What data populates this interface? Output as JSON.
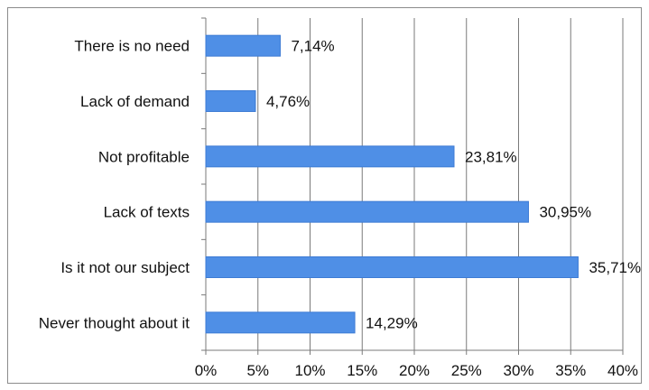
{
  "chart_data": {
    "type": "bar",
    "orientation": "horizontal",
    "categories": [
      "There is no need",
      "Lack of  demand",
      "Not profitable",
      "Lack of  texts",
      "Is it not our subject",
      "Never thought about it"
    ],
    "values": [
      7.14,
      4.76,
      23.81,
      30.95,
      35.71,
      14.29
    ],
    "data_labels": [
      "7,14%",
      "4,76%",
      "23,81%",
      "30,95%",
      "35,71%",
      "14,29%"
    ],
    "x_ticks": [
      "0%",
      "5%",
      "10%",
      "15%",
      "20%",
      "25%",
      "30%",
      "35%",
      "40%"
    ],
    "xlim": [
      0,
      40
    ],
    "grid": "vertical",
    "legend": "none",
    "bar_color": "#4f8fe6",
    "title": "",
    "xlabel": "",
    "ylabel": ""
  }
}
